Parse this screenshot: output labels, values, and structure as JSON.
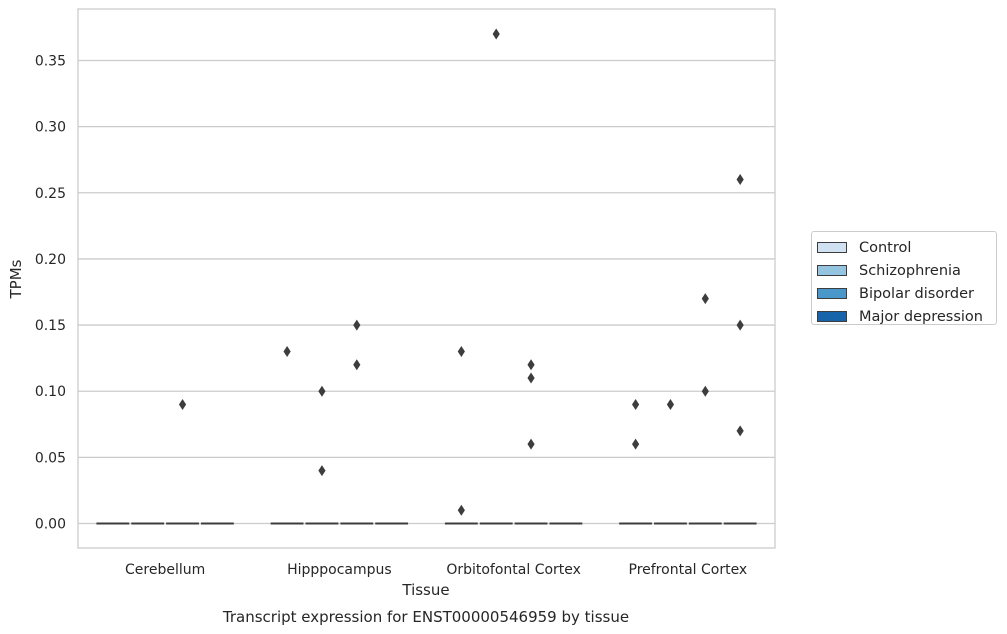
{
  "chart_data": {
    "type": "box",
    "title": "Transcript expression for ENST00000546959 by tissue",
    "xlabel": "Tissue",
    "ylabel": "TPMs",
    "ylim": [
      -0.018,
      0.388
    ],
    "yticks": [
      "0.00",
      "0.05",
      "0.10",
      "0.15",
      "0.20",
      "0.25",
      "0.30",
      "0.35"
    ],
    "ytick_values": [
      0,
      0.05,
      0.1,
      0.15,
      0.2,
      0.25,
      0.3,
      0.35
    ],
    "categories": [
      "Cerebellum",
      "Hipppocampus",
      "Orbitofontal Cortex",
      "Prefrontal Cortex"
    ],
    "grid": "horizontal",
    "legend_position": "right",
    "series": [
      {
        "name": "Control",
        "color": "#d0e1f2",
        "median": [
          0,
          0,
          0,
          0
        ],
        "outliers": [
          [],
          [
            0.13
          ],
          [
            0.13,
            0.01
          ],
          [
            0.09,
            0.06
          ]
        ]
      },
      {
        "name": "Schizophrenia",
        "color": "#94c4df",
        "median": [
          0,
          0,
          0,
          0
        ],
        "outliers": [
          [],
          [
            0.1,
            0.04
          ],
          [
            0.37
          ],
          [
            0.09
          ]
        ]
      },
      {
        "name": "Bipolar disorder",
        "color": "#4a98c9",
        "median": [
          0,
          0,
          0,
          0
        ],
        "outliers": [
          [
            0.09
          ],
          [
            0.15,
            0.12
          ],
          [
            0.12,
            0.11,
            0.06
          ],
          [
            0.17,
            0.1
          ]
        ]
      },
      {
        "name": "Major depression",
        "color": "#1764ab",
        "median": [
          0,
          0,
          0,
          0
        ],
        "outliers": [
          [],
          [],
          [],
          [
            0.26,
            0.15,
            0.07
          ]
        ]
      }
    ]
  }
}
